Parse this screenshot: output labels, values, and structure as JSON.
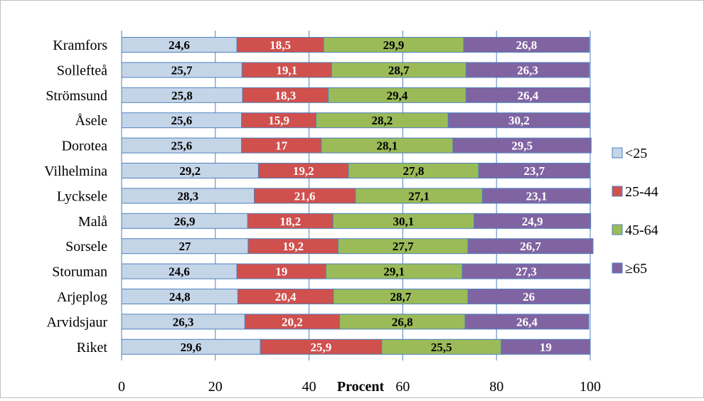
{
  "chart_data": {
    "type": "bar",
    "orientation": "horizontal",
    "stacked": true,
    "categories": [
      "Kramfors",
      "Sollefteå",
      "Strömsund",
      "Åsele",
      "Dorotea",
      "Vilhelmina",
      "Lycksele",
      "Malå",
      "Sorsele",
      "Storuman",
      "Arjeplog",
      "Arvidsjaur",
      "Riket"
    ],
    "series": [
      {
        "name": "<25",
        "color": "#c5d5e8",
        "label_color": "#000000",
        "values": [
          24.6,
          25.7,
          25.8,
          25.6,
          25.6,
          29.2,
          28.3,
          26.9,
          27,
          24.6,
          24.8,
          26.3,
          29.6
        ],
        "labels": [
          "24,6",
          "25,7",
          "25,8",
          "25,6",
          "25,6",
          "29,2",
          "28,3",
          "26,9",
          "27",
          "24,6",
          "24,8",
          "26,3",
          "29,6"
        ]
      },
      {
        "name": "25-44",
        "color": "#d0504d",
        "label_color": "#ffffff",
        "values": [
          18.5,
          19.1,
          18.3,
          15.9,
          17,
          19.2,
          21.6,
          18.2,
          19.2,
          19,
          20.4,
          20.2,
          25.9
        ],
        "labels": [
          "18,5",
          "19,1",
          "18,3",
          "15,9",
          "17",
          "19,2",
          "21,6",
          "18,2",
          "19,2",
          "19",
          "20,4",
          "20,2",
          "25,9"
        ]
      },
      {
        "name": "45-64",
        "color": "#9bbb58",
        "label_color": "#000000",
        "values": [
          29.9,
          28.7,
          29.4,
          28.2,
          28.1,
          27.8,
          27.1,
          30.1,
          27.7,
          29.1,
          28.7,
          26.8,
          25.5
        ],
        "labels": [
          "29,9",
          "28,7",
          "29,4",
          "28,2",
          "28,1",
          "27,8",
          "27,1",
          "30,1",
          "27,7",
          "29,1",
          "28,7",
          "26,8",
          "25,5"
        ]
      },
      {
        "name": "≥65",
        "color": "#8064a2",
        "label_color": "#ffffff",
        "values": [
          26.8,
          26.3,
          26.4,
          30.2,
          29.5,
          23.7,
          23.1,
          24.9,
          26.7,
          27.3,
          26,
          26.4,
          19
        ],
        "labels": [
          "26,8",
          "26,3",
          "26,4",
          "30,2",
          "29,5",
          "23,7",
          "23,1",
          "24,9",
          "26,7",
          "27,3",
          "26",
          "26,4",
          "19"
        ]
      }
    ],
    "xlim": [
      0,
      100
    ],
    "xticks": [
      "0",
      "20",
      "40",
      "60",
      "80",
      "100"
    ],
    "xlabel": "Procent",
    "grid": "vertical",
    "legend": "right"
  }
}
